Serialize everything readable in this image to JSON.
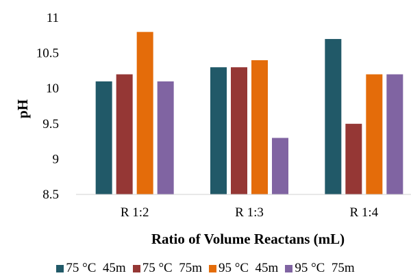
{
  "chart_data": {
    "type": "bar",
    "title": "",
    "xlabel": "Ratio of Volume Reactans (mL)",
    "ylabel": "pH",
    "categories": [
      "R 1:2",
      "R 1:3",
      "R 1:4"
    ],
    "ylim": [
      8.5,
      11
    ],
    "yticks": [
      "8.5",
      "9",
      "9.5",
      "10",
      "10.5",
      "11"
    ],
    "grid": false,
    "legend_position": "bottom",
    "series": [
      {
        "name": "75 °C  45m",
        "color": "#215968",
        "values": [
          10.1,
          10.3,
          10.7
        ]
      },
      {
        "name": "75 °C  75m",
        "color": "#953735",
        "values": [
          10.2,
          10.3,
          9.5
        ]
      },
      {
        "name": "95 °C  45m",
        "color": "#E46C0A",
        "values": [
          10.8,
          10.4,
          10.2
        ]
      },
      {
        "name": "95 °C  75m",
        "color": "#8064A2",
        "values": [
          10.1,
          9.3,
          10.2
        ]
      }
    ]
  }
}
